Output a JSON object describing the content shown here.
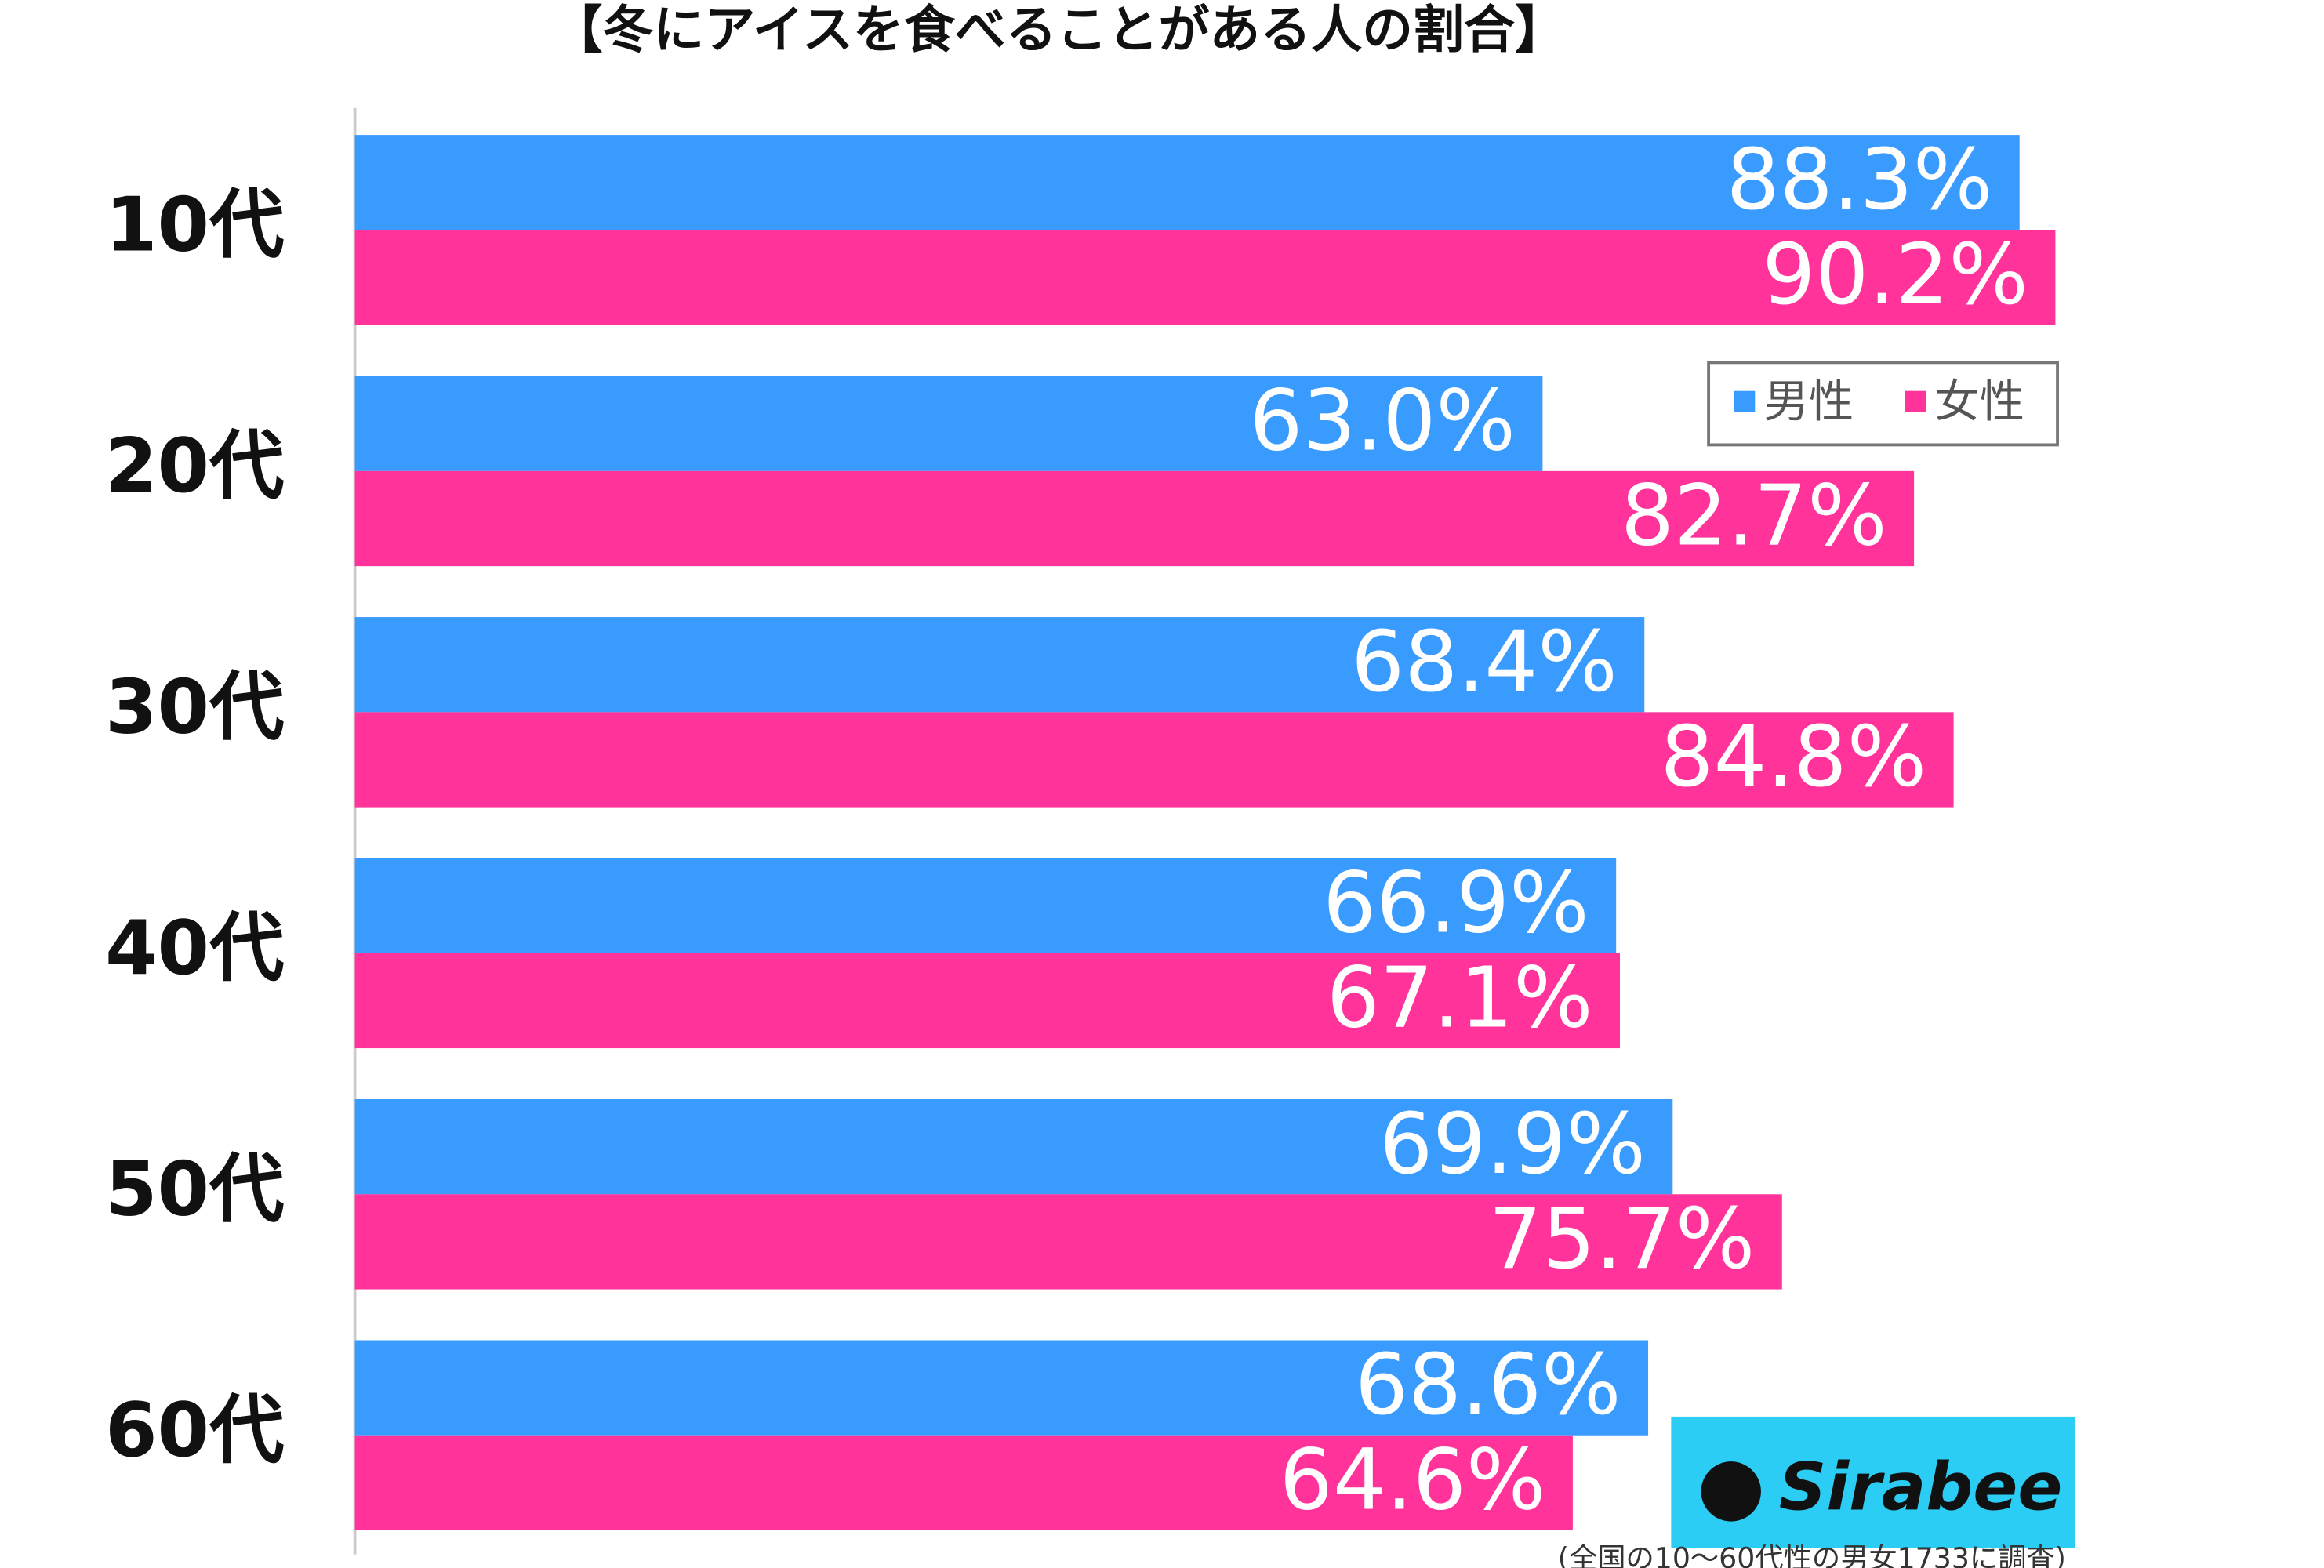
{
  "chart_data": {
    "type": "bar",
    "orientation": "horizontal",
    "title": "【冬にアイスを食べることがある人の割合】",
    "categories": [
      "10代",
      "20代",
      "30代",
      "40代",
      "50代",
      "60代"
    ],
    "series": [
      {
        "name": "男性",
        "color": "#3a9bff",
        "values": [
          88.3,
          63.0,
          68.4,
          66.9,
          69.9,
          68.6
        ],
        "value_labels": [
          "88.3%",
          "63.0%",
          "68.4%",
          "66.9%",
          "69.9%",
          "68.6%"
        ]
      },
      {
        "name": "女性",
        "color": "#ff3399",
        "values": [
          90.2,
          82.7,
          84.8,
          67.1,
          75.7,
          64.6
        ],
        "value_labels": [
          "90.2%",
          "82.7%",
          "84.8%",
          "67.1%",
          "75.7%",
          "64.6%"
        ]
      }
    ],
    "xlim": [
      0,
      100
    ],
    "legend": "upper right",
    "logo": "Sirabee",
    "note": "(全国の10～60代性の男女1733に調査)"
  }
}
